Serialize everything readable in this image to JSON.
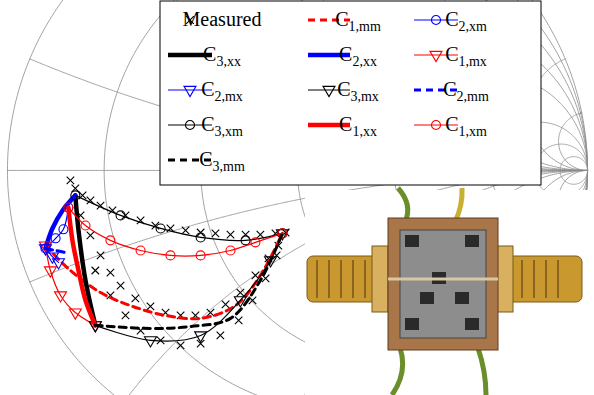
{
  "chart_data": {
    "type": "smith",
    "grid": true,
    "tick_labels": false,
    "legend": "top",
    "xlim": [
      -1.024,
      1.024
    ],
    "ylim": [
      -0.776,
      0.586
    ],
    "resistance_circles": [
      0,
      0.2,
      0.5,
      1,
      2,
      5,
      10,
      20
    ],
    "reactance_arcs": [
      0,
      0.2,
      -0.2,
      0.5,
      -0.5,
      1,
      -1,
      2,
      -2,
      5,
      -5,
      10,
      -10
    ],
    "series": [
      {
        "name": "Measured",
        "color": "black",
        "line_style": "none",
        "marker": "x",
        "values": [
          [
            -0.783,
            -0.034
          ],
          [
            -0.766,
            -0.062
          ],
          [
            -0.741,
            -0.086
          ],
          [
            -0.714,
            -0.103
          ],
          [
            -0.679,
            -0.121
          ],
          [
            -0.638,
            -0.138
          ],
          [
            -0.593,
            -0.155
          ],
          [
            -0.541,
            -0.172
          ],
          [
            -0.49,
            -0.19
          ],
          [
            -0.438,
            -0.2
          ],
          [
            -0.386,
            -0.207
          ],
          [
            -0.334,
            -0.214
          ],
          [
            -0.283,
            -0.217
          ],
          [
            -0.231,
            -0.221
          ],
          [
            -0.179,
            -0.221
          ],
          [
            -0.128,
            -0.221
          ],
          [
            -0.076,
            -0.217
          ],
          [
            -0.041,
            -0.214
          ],
          [
            -0.748,
            -0.155
          ],
          [
            -0.714,
            -0.224
          ],
          [
            -0.679,
            -0.293
          ],
          [
            -0.645,
            -0.352
          ],
          [
            -0.61,
            -0.397
          ],
          [
            -0.559,
            -0.441
          ],
          [
            -0.507,
            -0.469
          ],
          [
            -0.455,
            -0.49
          ],
          [
            -0.403,
            -0.5
          ],
          [
            -0.352,
            -0.5
          ],
          [
            -0.3,
            -0.49
          ],
          [
            -0.248,
            -0.462
          ],
          [
            -0.197,
            -0.421
          ],
          [
            -0.145,
            -0.362
          ],
          [
            -0.1,
            -0.303
          ],
          [
            -0.066,
            -0.259
          ],
          [
            -0.697,
            -0.345
          ],
          [
            -0.645,
            -0.431
          ],
          [
            -0.593,
            -0.5
          ],
          [
            -0.541,
            -0.552
          ],
          [
            -0.472,
            -0.586
          ],
          [
            -0.403,
            -0.603
          ],
          [
            -0.334,
            -0.597
          ],
          [
            -0.266,
            -0.569
          ],
          [
            -0.203,
            -0.517
          ],
          [
            -0.155,
            -0.448
          ],
          [
            -0.11,
            -0.372
          ],
          [
            -0.072,
            -0.293
          ]
        ]
      },
      {
        "name": "C1,mm",
        "color": "red",
        "line_style": "dashed",
        "marker": "none",
        "values": [
          [
            -0.869,
            -0.259
          ],
          [
            -0.783,
            -0.345
          ],
          [
            -0.679,
            -0.421
          ],
          [
            -0.576,
            -0.466
          ],
          [
            -0.455,
            -0.5
          ],
          [
            -0.334,
            -0.51
          ],
          [
            -0.214,
            -0.466
          ],
          [
            -0.128,
            -0.362
          ],
          [
            -0.052,
            -0.217
          ]
        ]
      },
      {
        "name": "C2,xm",
        "color": "blue",
        "line_style": "solid",
        "marker": "circle",
        "values": [
          [
            -0.869,
            -0.269
          ],
          [
            -0.834,
            -0.234
          ],
          [
            -0.807,
            -0.203
          ],
          [
            -0.79,
            -0.128
          ]
        ]
      },
      {
        "name": "C3,xx",
        "color": "black",
        "line_style": "thick",
        "marker": "none",
        "values": [
          [
            -0.766,
            -0.086
          ],
          [
            -0.755,
            -0.207
          ],
          [
            -0.731,
            -0.379
          ],
          [
            -0.697,
            -0.534
          ]
        ]
      },
      {
        "name": "C2,xx",
        "color": "blue",
        "line_style": "thick",
        "marker": "none",
        "values": [
          [
            -0.869,
            -0.269
          ],
          [
            -0.845,
            -0.2
          ],
          [
            -0.81,
            -0.138
          ],
          [
            -0.766,
            -0.086
          ]
        ]
      },
      {
        "name": "C1,mx",
        "color": "red",
        "line_style": "solid",
        "marker": "triangle-down",
        "values": [
          [
            -0.869,
            -0.259
          ],
          [
            -0.852,
            -0.345
          ],
          [
            -0.817,
            -0.431
          ],
          [
            -0.766,
            -0.49
          ],
          [
            -0.697,
            -0.534
          ]
        ]
      },
      {
        "name": "C2,mx",
        "color": "blue",
        "line_style": "solid",
        "marker": "triangle-down",
        "values": [
          [
            -0.869,
            -0.269
          ],
          [
            -0.845,
            -0.297
          ],
          [
            -0.824,
            -0.317
          ]
        ]
      },
      {
        "name": "C3,mx",
        "color": "black",
        "line_style": "solid",
        "marker": "triangle-down",
        "values": [
          [
            -0.697,
            -0.534
          ],
          [
            -0.507,
            -0.586
          ],
          [
            -0.334,
            -0.569
          ],
          [
            -0.197,
            -0.448
          ],
          [
            -0.093,
            -0.31
          ],
          [
            -0.052,
            -0.217
          ]
        ]
      },
      {
        "name": "C2,mm",
        "color": "blue",
        "line_style": "dashed",
        "marker": "none",
        "values": [
          [
            -0.869,
            -0.269
          ],
          [
            -0.834,
            -0.276
          ],
          [
            -0.8,
            -0.283
          ]
        ]
      },
      {
        "name": "C3,xm",
        "color": "black",
        "line_style": "solid",
        "marker": "circle",
        "values": [
          [
            -0.766,
            -0.086
          ],
          [
            -0.61,
            -0.155
          ],
          [
            -0.472,
            -0.2
          ],
          [
            -0.334,
            -0.231
          ],
          [
            -0.179,
            -0.241
          ],
          [
            -0.052,
            -0.217
          ]
        ]
      },
      {
        "name": "C1,xx",
        "color": "red",
        "line_style": "thick",
        "marker": "none",
        "values": [
          [
            -0.79,
            -0.128
          ],
          [
            -0.776,
            -0.241
          ],
          [
            -0.755,
            -0.345
          ],
          [
            -0.731,
            -0.448
          ],
          [
            -0.697,
            -0.534
          ]
        ]
      },
      {
        "name": "C1,xm",
        "color": "red",
        "line_style": "solid",
        "marker": "circle",
        "values": [
          [
            -0.79,
            -0.128
          ],
          [
            -0.731,
            -0.19
          ],
          [
            -0.645,
            -0.241
          ],
          [
            -0.541,
            -0.276
          ],
          [
            -0.438,
            -0.293
          ],
          [
            -0.334,
            -0.293
          ],
          [
            -0.231,
            -0.276
          ],
          [
            -0.145,
            -0.248
          ],
          [
            -0.052,
            -0.217
          ]
        ]
      },
      {
        "name": "C3,mm",
        "color": "black",
        "line_style": "dashed",
        "marker": "none",
        "values": [
          [
            -0.697,
            -0.534
          ],
          [
            -0.507,
            -0.545
          ],
          [
            -0.369,
            -0.538
          ],
          [
            -0.231,
            -0.51
          ],
          [
            -0.128,
            -0.379
          ],
          [
            -0.052,
            -0.217
          ]
        ]
      }
    ]
  }
}
